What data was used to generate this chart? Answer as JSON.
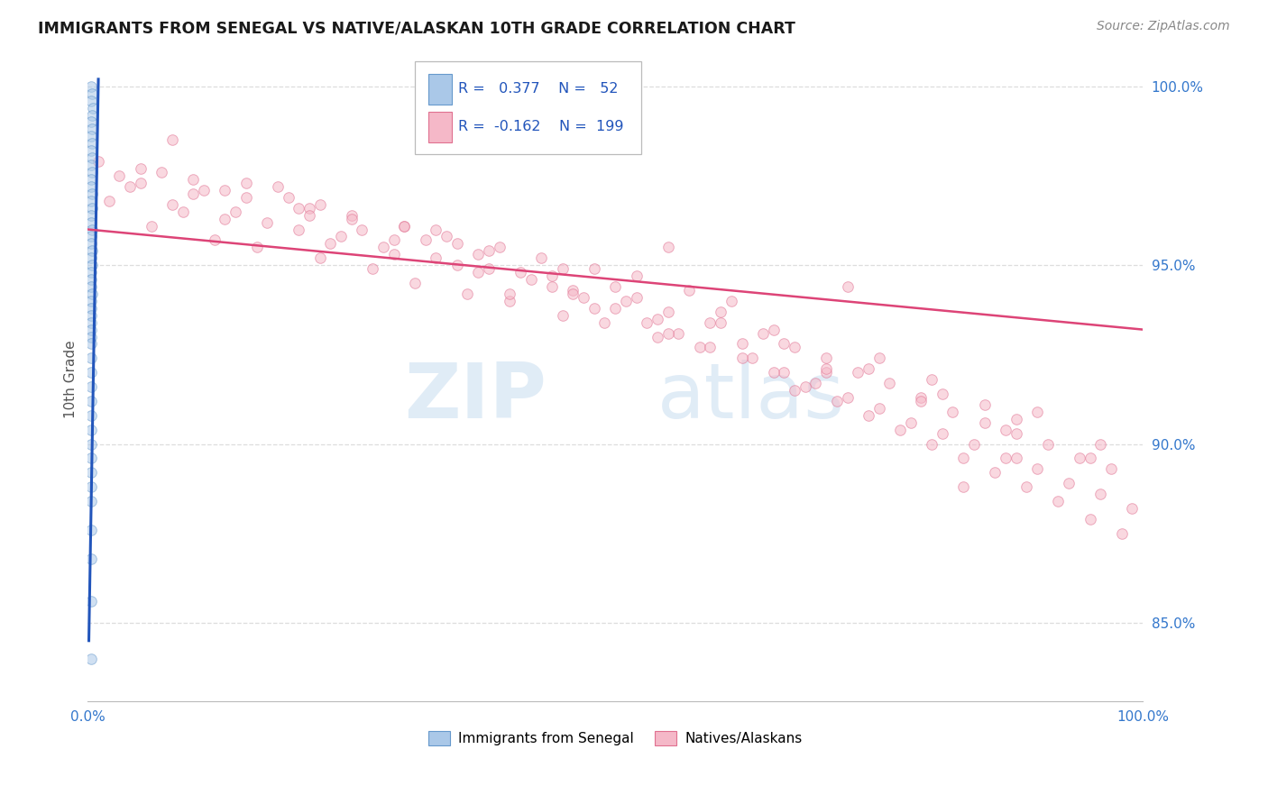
{
  "title": "IMMIGRANTS FROM SENEGAL VS NATIVE/ALASKAN 10TH GRADE CORRELATION CHART",
  "source": "Source: ZipAtlas.com",
  "ylabel": "10th Grade",
  "xlim": [
    0.0,
    1.0
  ],
  "ylim": [
    0.828,
    1.008
  ],
  "right_yticks": [
    1.0,
    0.95,
    0.9,
    0.85
  ],
  "right_yticklabels": [
    "100.0%",
    "95.0%",
    "90.0%",
    "85.0%"
  ],
  "legend_entries": [
    {
      "color": "#a8c4e0",
      "label": "Immigrants from Senegal",
      "R": "0.377",
      "N": "52"
    },
    {
      "color": "#f4a8b8",
      "label": "Natives/Alaskans",
      "R": "-0.162",
      "N": "199"
    }
  ],
  "blue_scatter_x": [
    0.003,
    0.004,
    0.003,
    0.005,
    0.004,
    0.003,
    0.004,
    0.003,
    0.004,
    0.003,
    0.004,
    0.003,
    0.004,
    0.003,
    0.003,
    0.004,
    0.003,
    0.004,
    0.003,
    0.003,
    0.004,
    0.003,
    0.003,
    0.004,
    0.003,
    0.004,
    0.003,
    0.003,
    0.003,
    0.004,
    0.003,
    0.003,
    0.003,
    0.003,
    0.003,
    0.003,
    0.003,
    0.003,
    0.003,
    0.003,
    0.003,
    0.003,
    0.003,
    0.003,
    0.003,
    0.003,
    0.003,
    0.003,
    0.003,
    0.003,
    0.003,
    0.003
  ],
  "blue_scatter_y": [
    1.0,
    0.998,
    0.996,
    0.994,
    0.992,
    0.99,
    0.988,
    0.986,
    0.984,
    0.982,
    0.98,
    0.978,
    0.976,
    0.974,
    0.972,
    0.97,
    0.968,
    0.966,
    0.964,
    0.962,
    0.96,
    0.958,
    0.956,
    0.954,
    0.952,
    0.95,
    0.948,
    0.946,
    0.944,
    0.942,
    0.94,
    0.938,
    0.936,
    0.934,
    0.932,
    0.93,
    0.928,
    0.924,
    0.92,
    0.916,
    0.912,
    0.908,
    0.904,
    0.9,
    0.896,
    0.892,
    0.888,
    0.884,
    0.876,
    0.868,
    0.856,
    0.84
  ],
  "pink_scatter_x": [
    0.02,
    0.04,
    0.06,
    0.07,
    0.09,
    0.1,
    0.12,
    0.13,
    0.15,
    0.16,
    0.18,
    0.2,
    0.21,
    0.22,
    0.24,
    0.25,
    0.27,
    0.28,
    0.3,
    0.31,
    0.33,
    0.34,
    0.36,
    0.37,
    0.39,
    0.4,
    0.42,
    0.43,
    0.45,
    0.46,
    0.48,
    0.49,
    0.51,
    0.52,
    0.54,
    0.55,
    0.57,
    0.58,
    0.6,
    0.61,
    0.63,
    0.64,
    0.66,
    0.67,
    0.69,
    0.7,
    0.72,
    0.73,
    0.75,
    0.76,
    0.78,
    0.79,
    0.81,
    0.82,
    0.84,
    0.85,
    0.87,
    0.88,
    0.9,
    0.91,
    0.93,
    0.94,
    0.96,
    0.97,
    0.99,
    0.03,
    0.05,
    0.08,
    0.11,
    0.14,
    0.17,
    0.19,
    0.23,
    0.26,
    0.29,
    0.32,
    0.35,
    0.38,
    0.41,
    0.44,
    0.47,
    0.5,
    0.53,
    0.56,
    0.59,
    0.62,
    0.65,
    0.68,
    0.71,
    0.74,
    0.77,
    0.8,
    0.83,
    0.86,
    0.89,
    0.92,
    0.95,
    0.98,
    0.01,
    0.08,
    0.15,
    0.22,
    0.3,
    0.37,
    0.44,
    0.52,
    0.59,
    0.66,
    0.74,
    0.81,
    0.88,
    0.96,
    0.05,
    0.13,
    0.21,
    0.29,
    0.38,
    0.46,
    0.54,
    0.62,
    0.7,
    0.79,
    0.87,
    0.95,
    0.1,
    0.2,
    0.35,
    0.5,
    0.65,
    0.8,
    0.9,
    0.25,
    0.45,
    0.6,
    0.75,
    0.85,
    0.4,
    0.55,
    0.7,
    0.55,
    0.72,
    0.88,
    0.33,
    0.67,
    0.83,
    0.48
  ],
  "pink_scatter_y": [
    0.968,
    0.972,
    0.961,
    0.976,
    0.965,
    0.97,
    0.957,
    0.963,
    0.969,
    0.955,
    0.972,
    0.96,
    0.966,
    0.952,
    0.958,
    0.964,
    0.949,
    0.955,
    0.961,
    0.945,
    0.952,
    0.958,
    0.942,
    0.948,
    0.955,
    0.94,
    0.946,
    0.952,
    0.936,
    0.943,
    0.949,
    0.934,
    0.94,
    0.947,
    0.93,
    0.937,
    0.943,
    0.927,
    0.934,
    0.94,
    0.924,
    0.931,
    0.92,
    0.927,
    0.917,
    0.924,
    0.913,
    0.92,
    0.91,
    0.917,
    0.906,
    0.913,
    0.903,
    0.909,
    0.9,
    0.906,
    0.896,
    0.903,
    0.893,
    0.9,
    0.889,
    0.896,
    0.886,
    0.893,
    0.882,
    0.975,
    0.973,
    0.967,
    0.971,
    0.965,
    0.962,
    0.969,
    0.956,
    0.96,
    0.953,
    0.957,
    0.95,
    0.954,
    0.948,
    0.944,
    0.941,
    0.938,
    0.934,
    0.931,
    0.927,
    0.924,
    0.92,
    0.916,
    0.912,
    0.908,
    0.904,
    0.9,
    0.896,
    0.892,
    0.888,
    0.884,
    0.879,
    0.875,
    0.979,
    0.985,
    0.973,
    0.967,
    0.961,
    0.953,
    0.947,
    0.941,
    0.934,
    0.928,
    0.921,
    0.914,
    0.907,
    0.9,
    0.977,
    0.971,
    0.964,
    0.957,
    0.949,
    0.942,
    0.935,
    0.928,
    0.92,
    0.912,
    0.904,
    0.896,
    0.974,
    0.966,
    0.956,
    0.944,
    0.932,
    0.918,
    0.909,
    0.963,
    0.949,
    0.937,
    0.924,
    0.911,
    0.942,
    0.931,
    0.921,
    0.955,
    0.944,
    0.896,
    0.96,
    0.915,
    0.888,
    0.938
  ],
  "blue_line_x": [
    0.001,
    0.01
  ],
  "blue_line_y": [
    0.845,
    1.002
  ],
  "pink_line_x": [
    0.0,
    1.0
  ],
  "pink_line_y": [
    0.96,
    0.932
  ],
  "watermark_zip": "ZIP",
  "watermark_atlas": "atlas",
  "background_color": "#ffffff",
  "grid_color": "#dddddd",
  "scatter_size": 70,
  "scatter_alpha": 0.55
}
